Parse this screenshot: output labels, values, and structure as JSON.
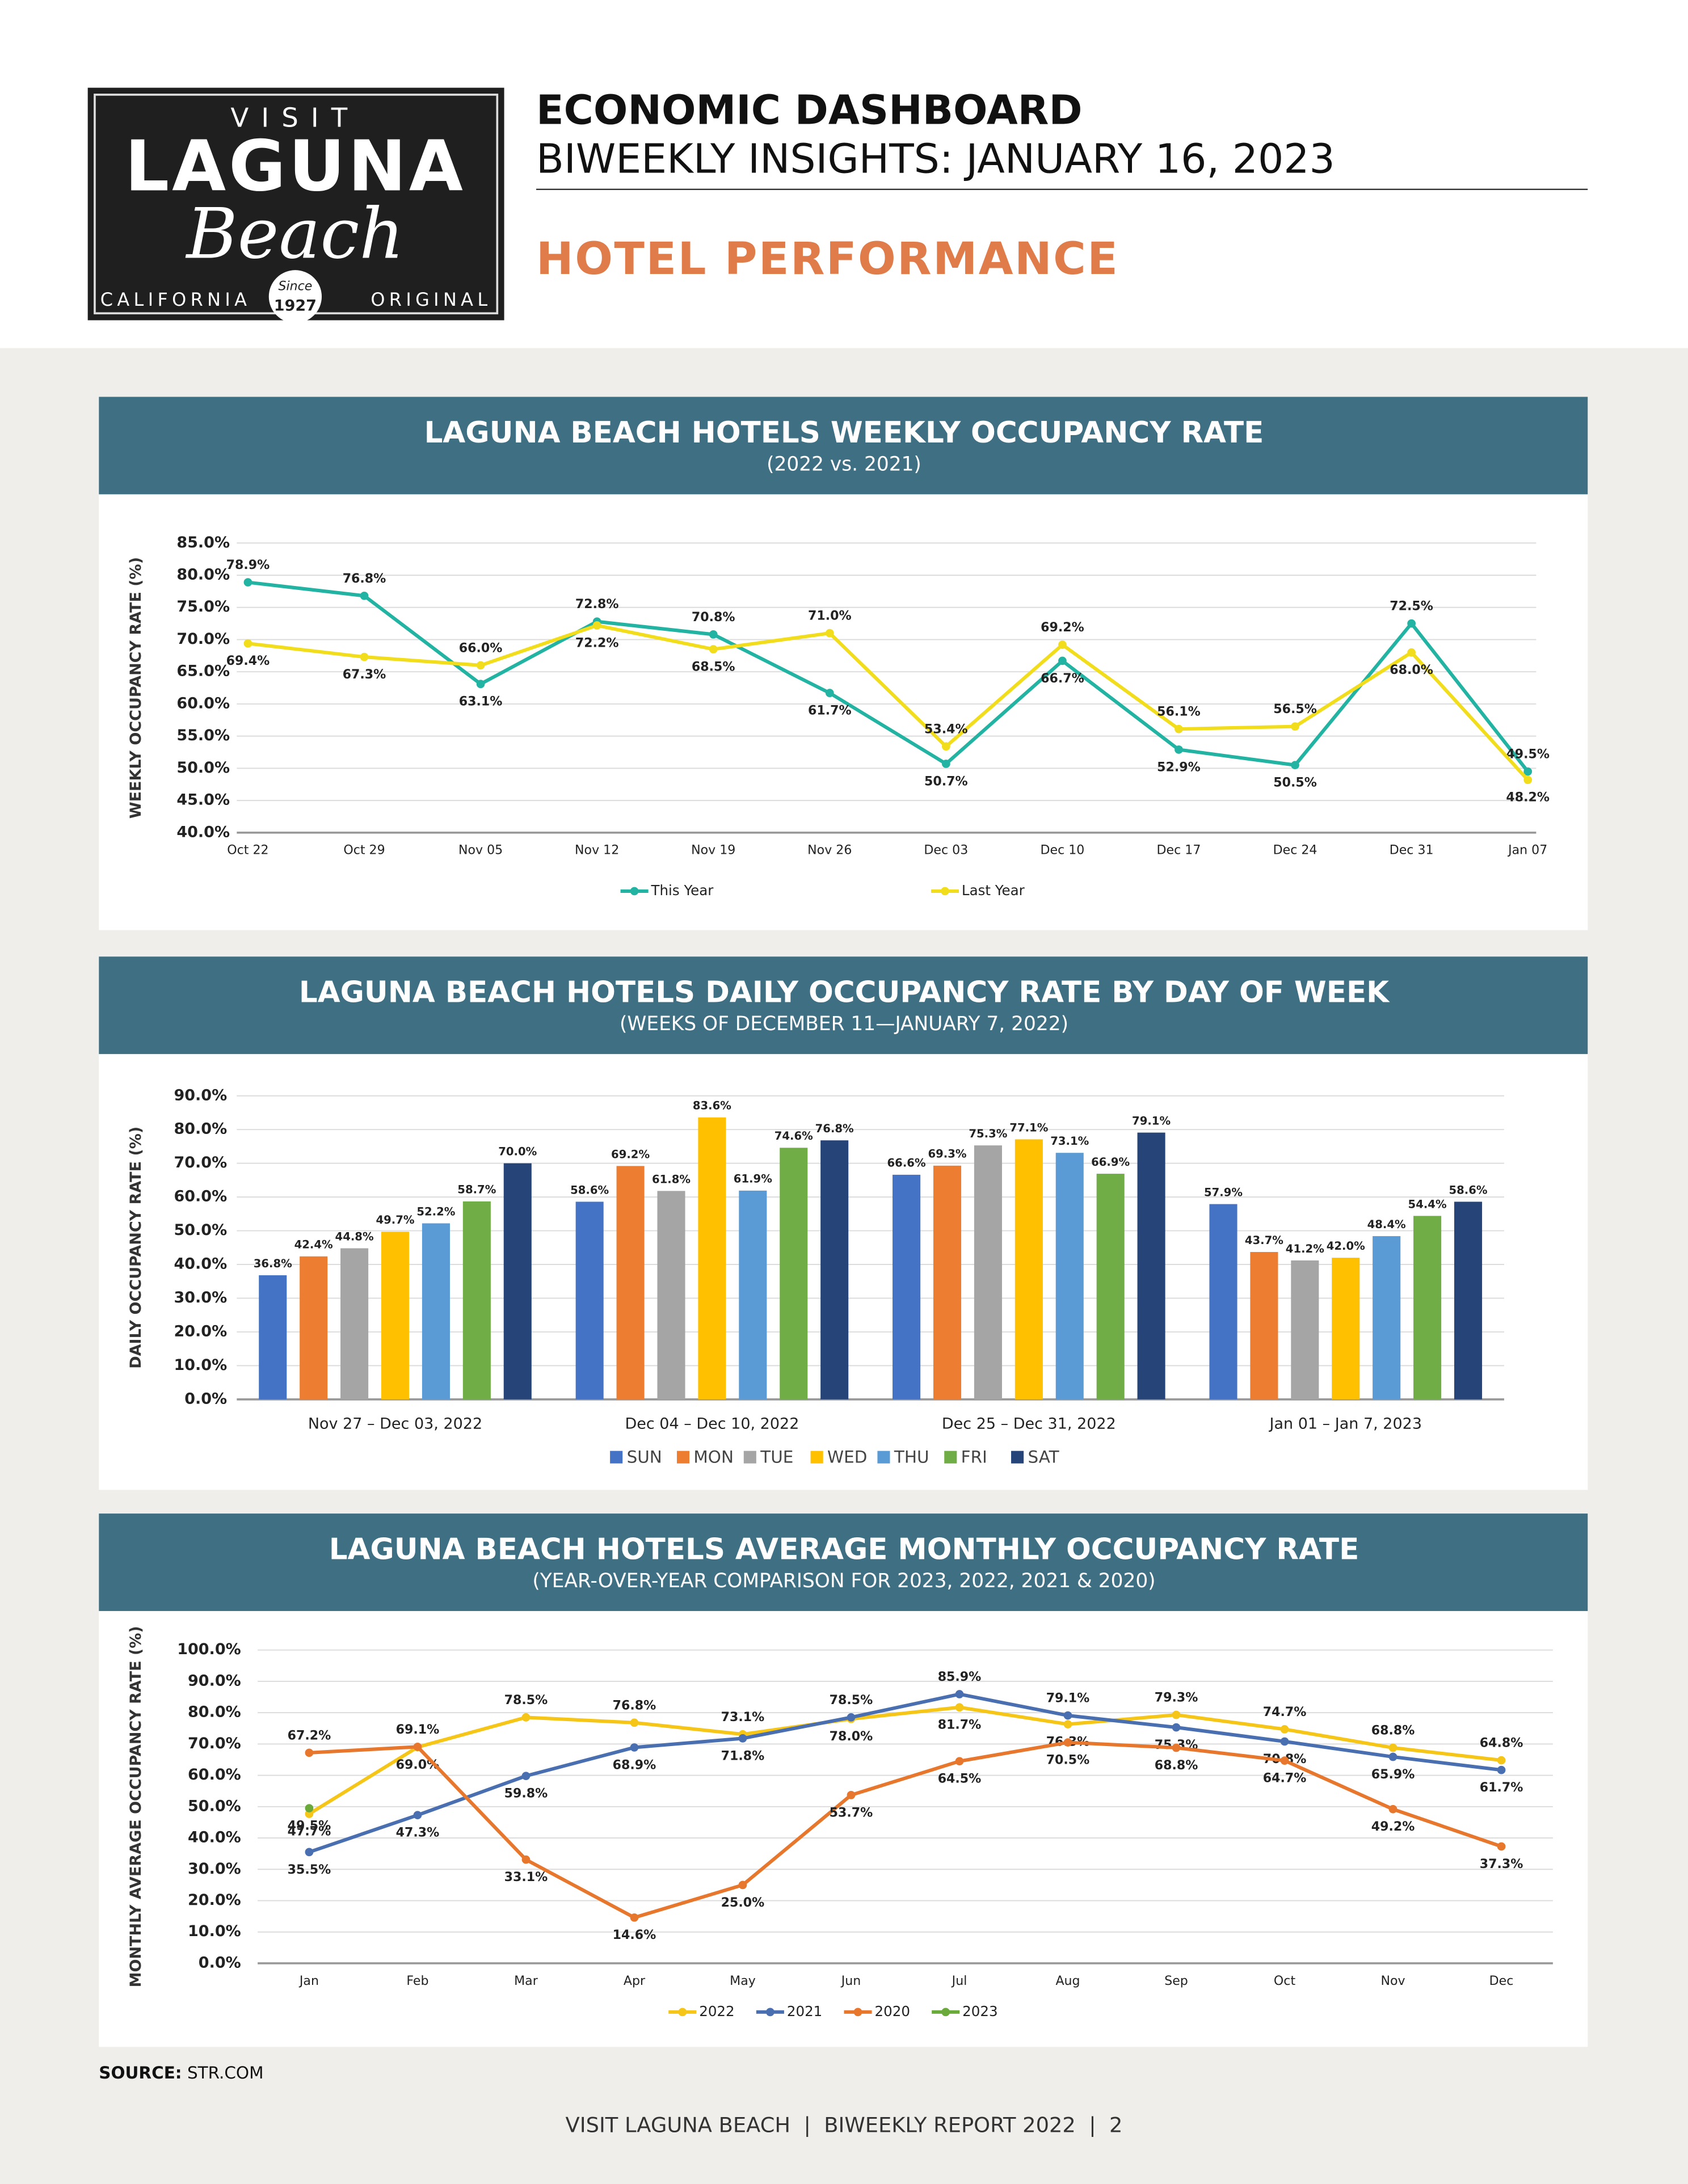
{
  "header": {
    "logo": {
      "top": "VISIT",
      "name": "LAGUNA",
      "script": "Beach",
      "left": "CALIFORNIA",
      "since": "Since",
      "year": "1927",
      "right": "ORIGINAL"
    },
    "title": "ECONOMIC DASHBOARD",
    "subtitle": "BIWEEKLY INSIGHTS: JANUARY 16, 2023",
    "section": "HOTEL PERFORMANCE"
  },
  "chart_data": [
    {
      "type": "line",
      "title": "LAGUNA BEACH HOTELS WEEKLY OCCUPANCY RATE",
      "subtitle": "(2022 vs. 2021)",
      "y_label": "WEEKLY OCCUPANCY RATE (%)",
      "categories": [
        "Oct 22",
        "Oct 29",
        "Nov 05",
        "Nov 12",
        "Nov 19",
        "Nov 26",
        "Dec 03",
        "Dec 10",
        "Dec 17",
        "Dec 24",
        "Dec 31",
        "Jan 07"
      ],
      "series": [
        {
          "name": "This Year",
          "color": "#22b3a3",
          "values": [
            78.9,
            76.8,
            63.1,
            72.8,
            70.8,
            61.7,
            50.7,
            66.7,
            52.9,
            50.5,
            72.5,
            49.5
          ],
          "value_labels": [
            "78.9%",
            "76.8%",
            "63.1%",
            "72.8%",
            "70.8%",
            "61.7%",
            "50.7%",
            "66.7%",
            "52.9%",
            "50.5%",
            "72.5%",
            "49.5%"
          ]
        },
        {
          "name": "Last Year",
          "color": "#f2dd1c",
          "values": [
            69.4,
            67.3,
            66.0,
            72.2,
            68.5,
            71.0,
            53.4,
            69.2,
            56.1,
            56.5,
            68.0,
            48.2
          ],
          "value_labels": [
            "69.4%",
            "67.3%",
            "66.0%",
            "72.2%",
            "68.5%",
            "71.0%",
            "53.4%",
            "69.2%",
            "56.1%",
            "56.5%",
            "68.0%",
            "48.2%"
          ]
        }
      ],
      "ylim": [
        40,
        85
      ],
      "yticks": [
        {
          "value": 40,
          "label": "40.0%"
        },
        {
          "value": 45,
          "label": "45.0%"
        },
        {
          "value": 50,
          "label": "50.0%"
        },
        {
          "value": 55,
          "label": "55.0%"
        },
        {
          "value": 60,
          "label": "60.0%"
        },
        {
          "value": 65,
          "label": "65.0%"
        },
        {
          "value": 70,
          "label": "70.0%"
        },
        {
          "value": 75,
          "label": "75.0%"
        },
        {
          "value": 80,
          "label": "80.0%"
        },
        {
          "value": 85,
          "label": "85.0%"
        }
      ],
      "grid": true,
      "legend": "bottom"
    },
    {
      "type": "bar",
      "title": "LAGUNA BEACH HOTELS DAILY OCCUPANCY RATE BY DAY OF WEEK",
      "subtitle": "(WEEKS OF DECEMBER 11—JANUARY 7, 2022)",
      "y_label": "DAILY OCCUPANCY RATE (%)",
      "categories": [
        "Nov 27 – Dec 03, 2022",
        "Dec 04 – Dec 10, 2022",
        "Dec 25 – Dec 31, 2022",
        "Jan 01 – Jan 7, 2023"
      ],
      "series": [
        {
          "name": "SUN",
          "color": "#4472c4",
          "values": [
            36.8,
            58.6,
            66.6,
            57.9
          ],
          "value_labels": [
            "36.8%",
            "58.6%",
            "66.6%",
            "57.9%"
          ]
        },
        {
          "name": "MON",
          "color": "#ed7d31",
          "values": [
            42.4,
            69.2,
            69.3,
            43.7
          ],
          "value_labels": [
            "42.4%",
            "69.2%",
            "69.3%",
            "43.7%"
          ]
        },
        {
          "name": "TUE",
          "color": "#a5a5a5",
          "values": [
            44.8,
            61.8,
            75.3,
            41.2
          ],
          "value_labels": [
            "44.8%",
            "61.8%",
            "75.3%",
            "41.2%"
          ]
        },
        {
          "name": "WED",
          "color": "#ffc000",
          "values": [
            49.7,
            83.6,
            77.1,
            42.0
          ],
          "value_labels": [
            "49.7%",
            "83.6%",
            "77.1%",
            "42.0%"
          ]
        },
        {
          "name": "THU",
          "color": "#5b9bd5",
          "values": [
            52.2,
            61.9,
            73.1,
            48.4
          ],
          "value_labels": [
            "52.2%",
            "61.9%",
            "73.1%",
            "48.4%"
          ]
        },
        {
          "name": "FRI",
          "color": "#70ad47",
          "values": [
            58.7,
            74.6,
            66.9,
            54.4
          ],
          "value_labels": [
            "58.7%",
            "74.6%",
            "66.9%",
            "54.4%"
          ]
        },
        {
          "name": "SAT",
          "color": "#264478",
          "values": [
            70.0,
            76.8,
            79.1,
            58.6
          ],
          "value_labels": [
            "70.0%",
            "76.8%",
            "79.1%",
            "58.6%"
          ]
        }
      ],
      "ylim": [
        0,
        90
      ],
      "yticks": [
        {
          "value": 0,
          "label": "0.0%"
        },
        {
          "value": 10,
          "label": "10.0%"
        },
        {
          "value": 20,
          "label": "20.0%"
        },
        {
          "value": 30,
          "label": "30.0%"
        },
        {
          "value": 40,
          "label": "40.0%"
        },
        {
          "value": 50,
          "label": "50.0%"
        },
        {
          "value": 60,
          "label": "60.0%"
        },
        {
          "value": 70,
          "label": "70.0%"
        },
        {
          "value": 80,
          "label": "80.0%"
        },
        {
          "value": 90,
          "label": "90.0%"
        }
      ],
      "grid": true,
      "legend": "bottom"
    },
    {
      "type": "line",
      "title": "LAGUNA BEACH HOTELS AVERAGE MONTHLY OCCUPANCY RATE",
      "subtitle": "(YEAR-OVER-YEAR COMPARISON FOR 2023, 2022, 2021 & 2020)",
      "y_label": "MONTHLY AVERAGE OCCUPANCY RATE (%)",
      "categories": [
        "Jan",
        "Feb",
        "Mar",
        "Apr",
        "May",
        "Jun",
        "Jul",
        "Aug",
        "Sep",
        "Oct",
        "Nov",
        "Dec"
      ],
      "series": [
        {
          "name": "2022",
          "color": "#f5c518",
          "values": [
            47.7,
            69.0,
            78.5,
            76.8,
            73.1,
            78.0,
            81.7,
            76.3,
            79.3,
            74.7,
            68.8,
            64.8
          ],
          "value_labels": [
            "47.7%",
            "69.0%",
            "78.5%",
            "76.8%",
            "73.1%",
            "78.0%",
            "81.7%",
            "76.3%",
            "79.3%",
            "74.7%",
            "68.8%",
            "64.8%"
          ]
        },
        {
          "name": "2021",
          "color": "#4a6fb0",
          "values": [
            35.5,
            47.3,
            59.8,
            68.9,
            71.8,
            78.5,
            85.9,
            79.1,
            75.3,
            70.8,
            65.9,
            61.7
          ],
          "value_labels": [
            "35.5%",
            "47.3%",
            "59.8%",
            "68.9%",
            "71.8%",
            "78.5%",
            "85.9%",
            "79.1%",
            "75.3%",
            "70.8%",
            "65.9%",
            "61.7%"
          ]
        },
        {
          "name": "2020",
          "color": "#e8772e",
          "values": [
            67.2,
            69.1,
            33.1,
            14.6,
            25.0,
            53.7,
            64.5,
            70.5,
            68.8,
            64.7,
            49.2,
            37.3
          ],
          "value_labels": [
            "67.2%",
            "69.1%",
            "33.1%",
            "14.6%",
            "25.0%",
            "53.7%",
            "64.5%",
            "70.5%",
            "68.8%",
            "64.7%",
            "49.2%",
            "37.3%"
          ]
        },
        {
          "name": "2023",
          "color": "#6aaa3a",
          "values": [
            49.5,
            null,
            null,
            null,
            null,
            null,
            null,
            null,
            null,
            null,
            null,
            null
          ],
          "value_labels": [
            "49.5%",
            null,
            null,
            null,
            null,
            null,
            null,
            null,
            null,
            null,
            null,
            null
          ]
        }
      ],
      "ylim": [
        0,
        100
      ],
      "yticks": [
        {
          "value": 0,
          "label": "0.0%"
        },
        {
          "value": 10,
          "label": "10.0%"
        },
        {
          "value": 20,
          "label": "20.0%"
        },
        {
          "value": 30,
          "label": "30.0%"
        },
        {
          "value": 40,
          "label": "40.0%"
        },
        {
          "value": 50,
          "label": "50.0%"
        },
        {
          "value": 60,
          "label": "60.0%"
        },
        {
          "value": 70,
          "label": "70.0%"
        },
        {
          "value": 80,
          "label": "80.0%"
        },
        {
          "value": 90,
          "label": "90.0%"
        },
        {
          "value": 100,
          "label": "100.0%"
        }
      ],
      "grid": true,
      "legend": "bottom"
    }
  ],
  "source": {
    "label": "SOURCE:",
    "text": "STR.COM"
  },
  "footer": "VISIT LAGUNA BEACH  |  BIWEEKLY REPORT 2022  |  2"
}
